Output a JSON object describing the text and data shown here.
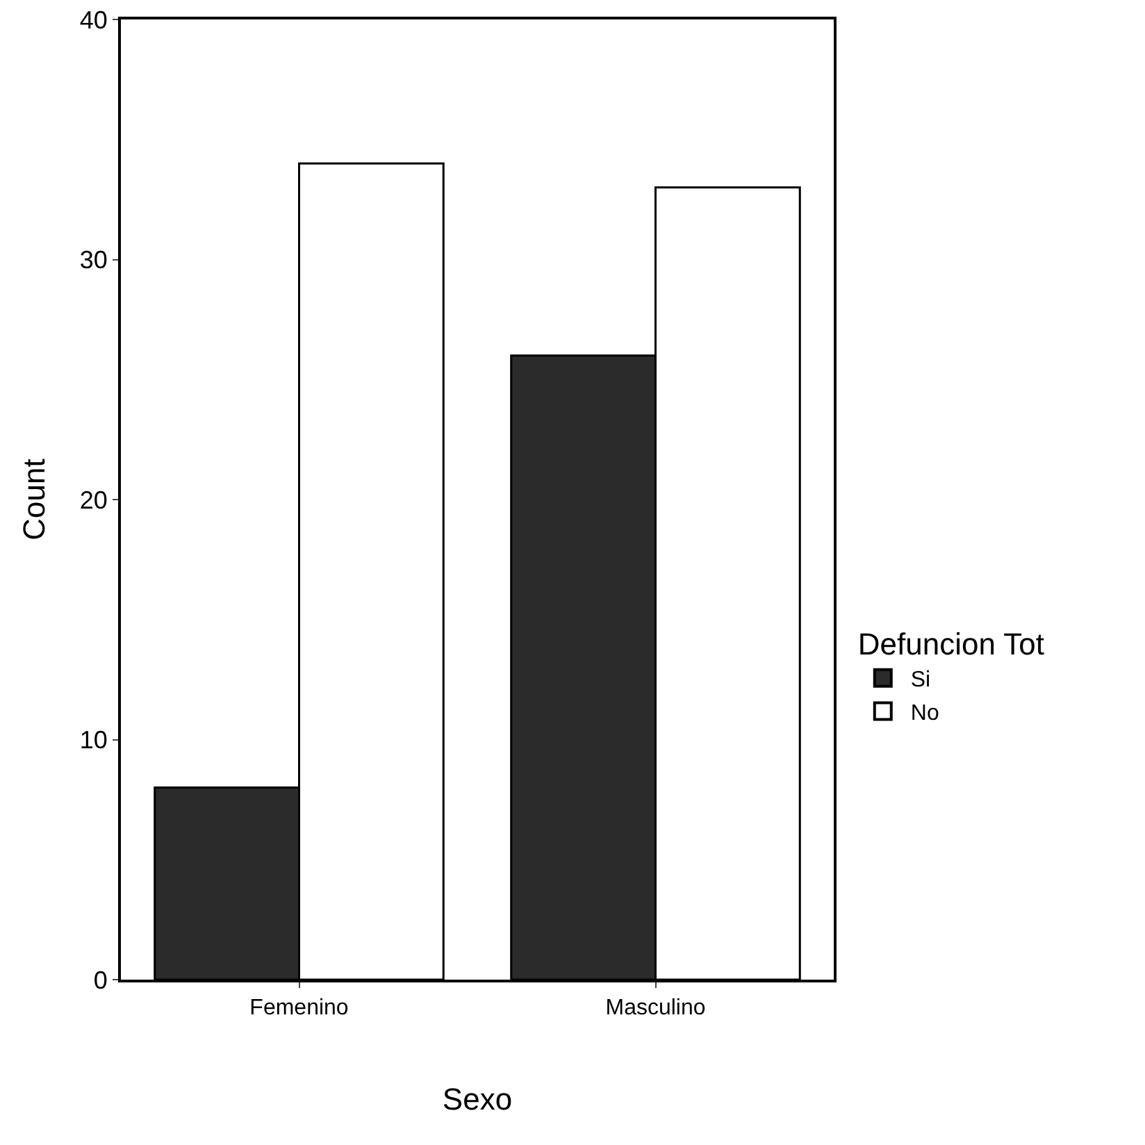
{
  "chart_data": {
    "type": "bar",
    "xlabel": "Sexo",
    "ylabel": "Count",
    "legend_title": "Defuncion Tot",
    "categories": [
      "Femenino",
      "Masculino"
    ],
    "series": [
      {
        "name": "Si",
        "color": "#2b2b2b",
        "values": [
          8,
          26
        ]
      },
      {
        "name": "No",
        "color": "#ffffff",
        "values": [
          34,
          33
        ]
      }
    ],
    "ylim": [
      0,
      40
    ],
    "yticks": [
      0,
      10,
      20,
      30,
      40
    ],
    "grid": false,
    "legend": "right"
  }
}
